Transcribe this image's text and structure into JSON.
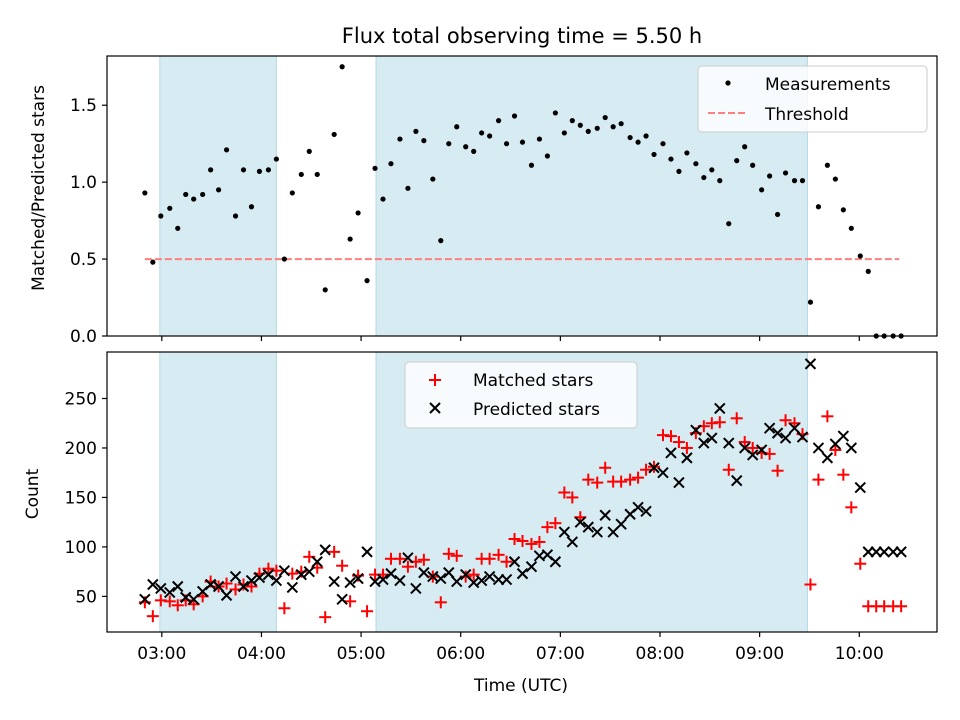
{
  "chart_data": [
    {
      "type": "scatter",
      "title": "Flux total observing time = 5.50 h",
      "xlabel": "",
      "ylabel": "Matched/Predicted stars",
      "xlim_hours": [
        2.45,
        10.78
      ],
      "ylim": [
        0,
        1.82
      ],
      "yticks": [
        0.0,
        0.5,
        1.0,
        1.5
      ],
      "ytick_labels": [
        "0.0",
        "0.5",
        "1.0",
        "1.5"
      ],
      "shaded_intervals_hours": [
        [
          2.98,
          4.15
        ],
        [
          5.15,
          9.48
        ]
      ],
      "legend_position": "top-right",
      "threshold": {
        "name": "Threshold",
        "value": 0.5,
        "x_range_hours": [
          2.83,
          10.4
        ],
        "color": "#ff7f7f"
      },
      "series": [
        {
          "name": "Measurements",
          "color": "#000000",
          "x": [
            2.83,
            2.91,
            2.99,
            3.08,
            3.16,
            3.24,
            3.32,
            3.41,
            3.49,
            3.57,
            3.65,
            3.74,
            3.82,
            3.9,
            3.98,
            4.07,
            4.15,
            4.23,
            4.31,
            4.4,
            4.48,
            4.56,
            4.64,
            4.73,
            4.81,
            4.89,
            4.97,
            5.06,
            5.14,
            5.22,
            5.3,
            5.39,
            5.47,
            5.55,
            5.63,
            5.72,
            5.8,
            5.88,
            5.96,
            6.05,
            6.13,
            6.21,
            6.29,
            6.38,
            6.46,
            6.54,
            6.62,
            6.71,
            6.79,
            6.87,
            6.95,
            7.04,
            7.12,
            7.2,
            7.28,
            7.37,
            7.45,
            7.53,
            7.61,
            7.7,
            7.78,
            7.86,
            7.94,
            8.03,
            8.11,
            8.19,
            8.27,
            8.36,
            8.44,
            8.52,
            8.6,
            8.69,
            8.77,
            8.85,
            8.93,
            9.02,
            9.1,
            9.18,
            9.26,
            9.35,
            9.43,
            9.51,
            9.59,
            9.68,
            9.76,
            9.84,
            9.92,
            10.01,
            10.09,
            10.17,
            10.25,
            10.34,
            10.42
          ],
          "y": [
            0.93,
            0.48,
            0.78,
            0.83,
            0.7,
            0.92,
            0.89,
            0.92,
            1.08,
            0.95,
            1.21,
            0.78,
            1.08,
            0.84,
            1.07,
            1.08,
            1.15,
            0.5,
            0.93,
            1.05,
            1.2,
            1.05,
            0.3,
            1.31,
            1.75,
            0.63,
            0.8,
            0.36,
            1.09,
            0.89,
            1.12,
            1.28,
            0.96,
            1.33,
            1.27,
            1.02,
            0.62,
            1.25,
            1.36,
            1.23,
            1.2,
            1.32,
            1.3,
            1.4,
            1.25,
            1.43,
            1.26,
            1.11,
            1.28,
            1.17,
            1.45,
            1.32,
            1.4,
            1.37,
            1.33,
            1.35,
            1.42,
            1.36,
            1.38,
            1.29,
            1.26,
            1.3,
            1.18,
            1.25,
            1.15,
            1.07,
            1.19,
            1.12,
            1.03,
            1.08,
            1.01,
            0.73,
            1.14,
            1.23,
            1.11,
            0.95,
            1.04,
            0.79,
            1.06,
            1.01,
            1.01,
            0.22,
            0.84,
            1.11,
            1.02,
            0.82,
            0.7,
            0.52,
            0.42,
            0.0,
            0.0,
            0.0,
            0.0
          ]
        }
      ]
    },
    {
      "type": "scatter",
      "title": "",
      "xlabel": "Time (UTC)",
      "ylabel": "Count",
      "xlim_hours": [
        2.45,
        10.78
      ],
      "ylim": [
        14,
        297
      ],
      "yticks": [
        50,
        100,
        150,
        200,
        250
      ],
      "ytick_labels": [
        "50",
        "100",
        "150",
        "200",
        "250"
      ],
      "xticks_hours": [
        3,
        4,
        5,
        6,
        7,
        8,
        9,
        10
      ],
      "xtick_labels": [
        "03:00",
        "04:00",
        "05:00",
        "06:00",
        "07:00",
        "08:00",
        "09:00",
        "10:00"
      ],
      "shaded_intervals_hours": [
        [
          2.98,
          4.15
        ],
        [
          5.15,
          9.48
        ]
      ],
      "legend_position": "top-center",
      "series": [
        {
          "name": "Matched stars",
          "marker": "+",
          "color": "#ff0000",
          "x": [
            2.83,
            2.91,
            2.99,
            3.08,
            3.16,
            3.24,
            3.32,
            3.41,
            3.49,
            3.57,
            3.65,
            3.74,
            3.82,
            3.9,
            3.98,
            4.07,
            4.15,
            4.23,
            4.31,
            4.4,
            4.48,
            4.56,
            4.64,
            4.73,
            4.81,
            4.89,
            4.97,
            5.06,
            5.14,
            5.22,
            5.3,
            5.39,
            5.47,
            5.55,
            5.63,
            5.72,
            5.8,
            5.88,
            5.96,
            6.05,
            6.13,
            6.21,
            6.29,
            6.38,
            6.46,
            6.54,
            6.62,
            6.71,
            6.79,
            6.87,
            6.95,
            7.04,
            7.12,
            7.2,
            7.28,
            7.37,
            7.45,
            7.53,
            7.61,
            7.7,
            7.78,
            7.86,
            7.94,
            8.03,
            8.11,
            8.19,
            8.27,
            8.36,
            8.44,
            8.52,
            8.6,
            8.69,
            8.77,
            8.85,
            8.93,
            9.02,
            9.1,
            9.18,
            9.26,
            9.35,
            9.43,
            9.51,
            9.59,
            9.68,
            9.76,
            9.84,
            9.92,
            10.01,
            10.09,
            10.17,
            10.25,
            10.34,
            10.42
          ],
          "y": [
            44,
            30,
            46,
            45,
            41,
            46,
            42,
            50,
            65,
            60,
            63,
            57,
            62,
            60,
            73,
            78,
            76,
            38,
            73,
            75,
            90,
            79,
            29,
            95,
            81,
            45,
            71,
            35,
            72,
            72,
            88,
            88,
            80,
            85,
            87,
            70,
            44,
            93,
            91,
            70,
            72,
            88,
            88,
            92,
            85,
            108,
            106,
            103,
            105,
            120,
            124,
            155,
            150,
            130,
            168,
            165,
            180,
            166,
            166,
            168,
            170,
            178,
            181,
            213,
            212,
            206,
            200,
            215,
            222,
            225,
            226,
            178,
            230,
            206,
            200,
            195,
            194,
            177,
            228,
            225,
            214,
            62,
            168,
            232,
            198,
            173,
            140,
            83,
            40,
            40,
            40,
            40,
            40
          ]
        },
        {
          "name": "Predicted stars",
          "marker": "x",
          "color": "#000000",
          "x": [
            2.83,
            2.91,
            2.99,
            3.08,
            3.16,
            3.24,
            3.32,
            3.41,
            3.49,
            3.57,
            3.65,
            3.74,
            3.82,
            3.9,
            3.98,
            4.07,
            4.15,
            4.23,
            4.31,
            4.4,
            4.48,
            4.56,
            4.64,
            4.73,
            4.81,
            4.89,
            4.97,
            5.06,
            5.14,
            5.22,
            5.3,
            5.39,
            5.47,
            5.55,
            5.63,
            5.72,
            5.8,
            5.88,
            5.96,
            6.05,
            6.13,
            6.21,
            6.29,
            6.38,
            6.46,
            6.54,
            6.62,
            6.71,
            6.79,
            6.87,
            6.95,
            7.04,
            7.12,
            7.2,
            7.28,
            7.37,
            7.45,
            7.53,
            7.61,
            7.7,
            7.78,
            7.86,
            7.94,
            8.03,
            8.11,
            8.19,
            8.27,
            8.36,
            8.44,
            8.52,
            8.6,
            8.69,
            8.77,
            8.85,
            8.93,
            9.02,
            9.1,
            9.18,
            9.26,
            9.35,
            9.43,
            9.51,
            9.59,
            9.68,
            9.76,
            9.84,
            9.92,
            10.01,
            10.09,
            10.17,
            10.25,
            10.34,
            10.42
          ],
          "y": [
            47,
            62,
            58,
            54,
            60,
            49,
            47,
            55,
            62,
            60,
            51,
            70,
            60,
            66,
            69,
            72,
            66,
            76,
            59,
            72,
            75,
            85,
            97,
            65,
            47,
            64,
            68,
            95,
            65,
            67,
            73,
            66,
            89,
            58,
            74,
            70,
            68,
            74,
            65,
            72,
            64,
            66,
            70,
            67,
            67,
            85,
            73,
            80,
            91,
            92,
            85,
            115,
            105,
            125,
            120,
            115,
            132,
            115,
            123,
            133,
            140,
            136,
            180,
            175,
            195,
            165,
            190,
            218,
            205,
            210,
            240,
            205,
            167,
            200,
            193,
            198,
            220,
            215,
            210,
            220,
            211,
            285,
            200,
            190,
            204,
            212,
            200,
            160,
            95,
            95,
            95,
            95,
            95
          ]
        }
      ]
    }
  ]
}
